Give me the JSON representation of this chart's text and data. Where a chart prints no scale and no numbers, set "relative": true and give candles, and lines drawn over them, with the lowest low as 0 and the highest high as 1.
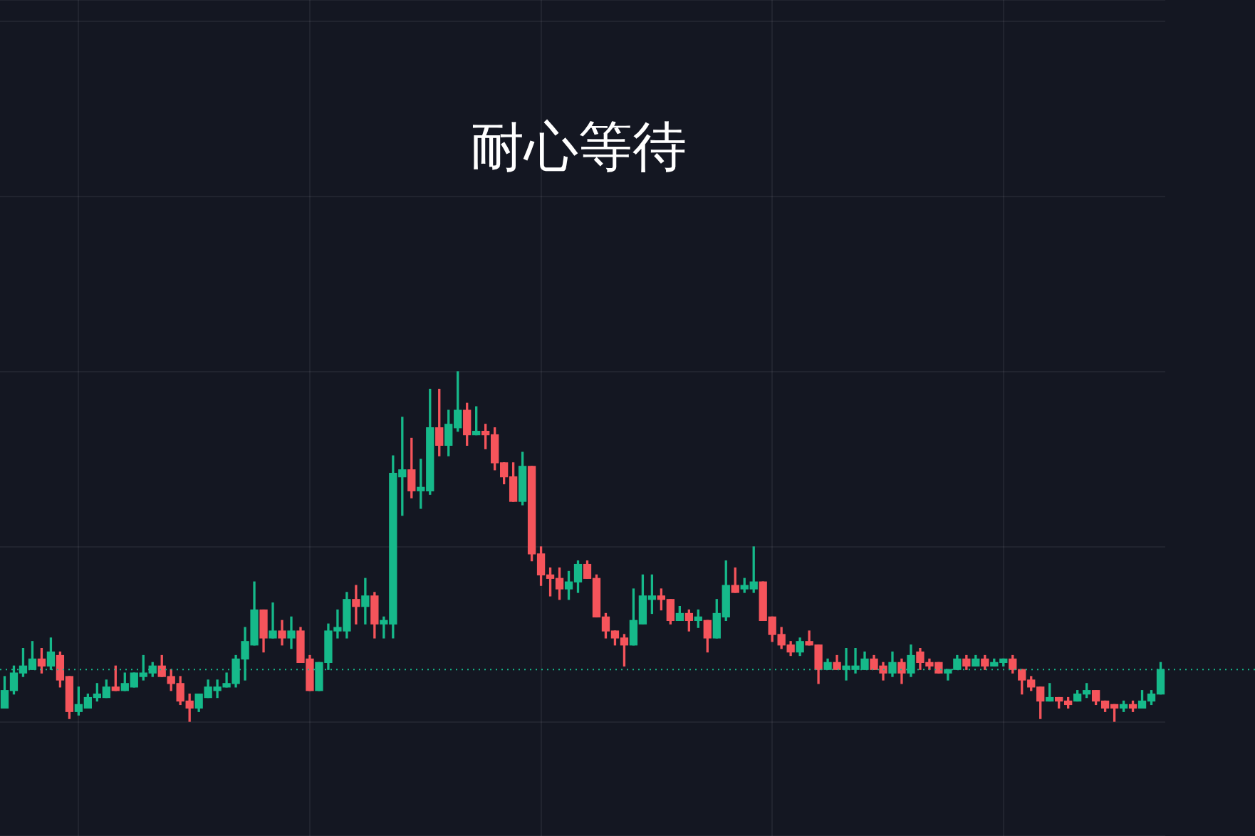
{
  "chart_data": {
    "type": "candlestick",
    "title": "耐心等待",
    "relative": true,
    "grid": true,
    "categories": [
      null,
      null,
      null,
      null,
      null,
      null,
      null,
      null,
      null,
      null,
      null,
      null,
      null,
      null,
      null,
      null,
      null,
      null,
      null,
      null,
      null,
      null,
      null,
      null,
      null,
      null,
      null,
      null,
      null,
      null,
      null,
      null,
      null,
      null,
      null,
      null,
      null,
      null,
      null,
      null,
      null,
      null,
      null,
      null,
      null,
      null,
      null,
      null,
      null,
      null,
      null,
      null,
      null,
      null,
      null,
      null,
      null,
      null,
      null,
      null,
      null,
      null,
      null,
      null,
      null,
      null,
      null,
      null,
      null,
      null,
      null,
      null,
      null,
      null,
      null,
      null,
      null,
      null,
      null,
      null,
      null,
      null,
      null,
      null,
      null,
      null,
      null,
      null,
      null,
      null,
      null,
      null,
      null,
      null,
      null,
      null,
      null,
      null,
      null,
      null,
      null,
      null,
      null,
      null,
      null,
      null,
      null,
      null,
      null,
      null,
      null,
      null,
      null,
      null,
      null,
      null,
      null,
      null,
      null,
      null,
      null,
      null,
      null,
      null,
      null,
      null
    ],
    "ohlc": [
      [
        0.04,
        0.13,
        0.04,
        0.09
      ],
      [
        0.09,
        0.16,
        0.08,
        0.14
      ],
      [
        0.14,
        0.21,
        0.13,
        0.16
      ],
      [
        0.15,
        0.23,
        0.15,
        0.18
      ],
      [
        0.18,
        0.21,
        0.14,
        0.16
      ],
      [
        0.16,
        0.24,
        0.15,
        0.2
      ],
      [
        0.19,
        0.2,
        0.1,
        0.12
      ],
      [
        0.13,
        0.13,
        0.01,
        0.03
      ],
      [
        0.03,
        0.1,
        0.02,
        0.05
      ],
      [
        0.04,
        0.08,
        0.04,
        0.07
      ],
      [
        0.07,
        0.11,
        0.06,
        0.08
      ],
      [
        0.07,
        0.12,
        0.07,
        0.1
      ],
      [
        0.1,
        0.16,
        0.09,
        0.09
      ],
      [
        0.09,
        0.14,
        0.09,
        0.11
      ],
      [
        0.1,
        0.14,
        0.1,
        0.14
      ],
      [
        0.13,
        0.19,
        0.12,
        0.14
      ],
      [
        0.14,
        0.17,
        0.13,
        0.16
      ],
      [
        0.16,
        0.19,
        0.13,
        0.13
      ],
      [
        0.13,
        0.15,
        0.09,
        0.11
      ],
      [
        0.11,
        0.13,
        0.05,
        0.06
      ],
      [
        0.06,
        0.08,
        0,
        0.04
      ],
      [
        0.04,
        0.08,
        0.03,
        0.08
      ],
      [
        0.07,
        0.12,
        0.07,
        0.1
      ],
      [
        0.09,
        0.12,
        0.07,
        0.1
      ],
      [
        0.1,
        0.14,
        0.1,
        0.11
      ],
      [
        0.11,
        0.19,
        0.1,
        0.18
      ],
      [
        0.18,
        0.27,
        0.12,
        0.23
      ],
      [
        0.22,
        0.4,
        0.22,
        0.32
      ],
      [
        0.32,
        0.32,
        0.2,
        0.24
      ],
      [
        0.24,
        0.34,
        0.24,
        0.26
      ],
      [
        0.26,
        0.29,
        0.22,
        0.24
      ],
      [
        0.24,
        0.3,
        0.21,
        0.26
      ],
      [
        0.26,
        0.27,
        0.17,
        0.17
      ],
      [
        0.18,
        0.19,
        0.09,
        0.09
      ],
      [
        0.09,
        0.17,
        0.09,
        0.17
      ],
      [
        0.17,
        0.28,
        0.15,
        0.26
      ],
      [
        0.26,
        0.32,
        0.24,
        0.27
      ],
      [
        0.26,
        0.37,
        0.24,
        0.35
      ],
      [
        0.35,
        0.39,
        0.28,
        0.33
      ],
      [
        0.33,
        0.41,
        0.28,
        0.36
      ],
      [
        0.36,
        0.37,
        0.24,
        0.28
      ],
      [
        0.28,
        0.3,
        0.24,
        0.29
      ],
      [
        0.28,
        0.76,
        0.24,
        0.71
      ],
      [
        0.7,
        0.87,
        0.59,
        0.72
      ],
      [
        0.72,
        0.81,
        0.64,
        0.66
      ],
      [
        0.66,
        0.75,
        0.61,
        0.67
      ],
      [
        0.66,
        0.95,
        0.65,
        0.84
      ],
      [
        0.84,
        0.95,
        0.76,
        0.79
      ],
      [
        0.79,
        0.89,
        0.76,
        0.85
      ],
      [
        0.84,
        1,
        0.83,
        0.89
      ],
      [
        0.89,
        0.91,
        0.79,
        0.82
      ],
      [
        0.82,
        0.9,
        0.82,
        0.83
      ],
      [
        0.83,
        0.85,
        0.78,
        0.82
      ],
      [
        0.82,
        0.84,
        0.72,
        0.74
      ],
      [
        0.74,
        0.74,
        0.68,
        0.7
      ],
      [
        0.7,
        0.74,
        0.63,
        0.63
      ],
      [
        0.63,
        0.77,
        0.62,
        0.73
      ],
      [
        0.73,
        0.73,
        0.46,
        0.48
      ],
      [
        0.48,
        0.5,
        0.39,
        0.42
      ],
      [
        0.42,
        0.44,
        0.36,
        0.41
      ],
      [
        0.41,
        0.44,
        0.35,
        0.38
      ],
      [
        0.38,
        0.43,
        0.35,
        0.4
      ],
      [
        0.4,
        0.46,
        0.37,
        0.45
      ],
      [
        0.45,
        0.46,
        0.41,
        0.41
      ],
      [
        0.41,
        0.42,
        0.3,
        0.3
      ],
      [
        0.3,
        0.31,
        0.24,
        0.26
      ],
      [
        0.26,
        0.26,
        0.22,
        0.24
      ],
      [
        0.24,
        0.25,
        0.16,
        0.22
      ],
      [
        0.22,
        0.38,
        0.22,
        0.29
      ],
      [
        0.28,
        0.42,
        0.28,
        0.36
      ],
      [
        0.35,
        0.42,
        0.31,
        0.36
      ],
      [
        0.36,
        0.38,
        0.32,
        0.35
      ],
      [
        0.35,
        0.35,
        0.28,
        0.29
      ],
      [
        0.29,
        0.33,
        0.29,
        0.31
      ],
      [
        0.31,
        0.32,
        0.26,
        0.29
      ],
      [
        0.29,
        0.32,
        0.27,
        0.3
      ],
      [
        0.29,
        0.29,
        0.2,
        0.24
      ],
      [
        0.24,
        0.35,
        0.24,
        0.31
      ],
      [
        0.3,
        0.46,
        0.29,
        0.39
      ],
      [
        0.39,
        0.44,
        0.37,
        0.37
      ],
      [
        0.38,
        0.41,
        0.37,
        0.39
      ],
      [
        0.38,
        0.5,
        0.37,
        0.4
      ],
      [
        0.4,
        0.4,
        0.29,
        0.29
      ],
      [
        0.3,
        0.3,
        0.23,
        0.25
      ],
      [
        0.25,
        0.27,
        0.21,
        0.22
      ],
      [
        0.22,
        0.23,
        0.19,
        0.2
      ],
      [
        0.2,
        0.24,
        0.19,
        0.23
      ],
      [
        0.23,
        0.26,
        0.22,
        0.22
      ],
      [
        0.22,
        0.22,
        0.11,
        0.15
      ],
      [
        0.15,
        0.18,
        0.15,
        0.17
      ],
      [
        0.17,
        0.19,
        0.15,
        0.15
      ],
      [
        0.15,
        0.21,
        0.12,
        0.16
      ],
      [
        0.15,
        0.21,
        0.14,
        0.16
      ],
      [
        0.15,
        0.2,
        0.15,
        0.18
      ],
      [
        0.18,
        0.19,
        0.15,
        0.15
      ],
      [
        0.16,
        0.17,
        0.12,
        0.14
      ],
      [
        0.14,
        0.2,
        0.13,
        0.17
      ],
      [
        0.17,
        0.18,
        0.11,
        0.14
      ],
      [
        0.14,
        0.22,
        0.13,
        0.19
      ],
      [
        0.2,
        0.21,
        0.15,
        0.17
      ],
      [
        0.17,
        0.18,
        0.15,
        0.16
      ],
      [
        0.17,
        0.17,
        0.14,
        0.14
      ],
      [
        0.14,
        0.15,
        0.12,
        0.15
      ],
      [
        0.15,
        0.19,
        0.15,
        0.18
      ],
      [
        0.18,
        0.19,
        0.15,
        0.16
      ],
      [
        0.16,
        0.19,
        0.16,
        0.18
      ],
      [
        0.18,
        0.19,
        0.15,
        0.16
      ],
      [
        0.16,
        0.18,
        0.16,
        0.17
      ],
      [
        0.17,
        0.18,
        0.16,
        0.18
      ],
      [
        0.18,
        0.19,
        0.14,
        0.15
      ],
      [
        0.15,
        0.15,
        0.08,
        0.12
      ],
      [
        0.12,
        0.13,
        0.09,
        0.1
      ],
      [
        0.1,
        0.1,
        0.01,
        0.06
      ],
      [
        0.06,
        0.11,
        0.06,
        0.07
      ],
      [
        0.07,
        0.07,
        0.04,
        0.06
      ],
      [
        0.06,
        0.07,
        0.04,
        0.05
      ],
      [
        0.06,
        0.09,
        0.06,
        0.08
      ],
      [
        0.08,
        0.11,
        0.07,
        0.09
      ],
      [
        0.09,
        0.09,
        0.05,
        0.06
      ],
      [
        0.06,
        0.06,
        0.03,
        0.04
      ],
      [
        0.05,
        0.05,
        0,
        0.04
      ],
      [
        0.04,
        0.06,
        0.03,
        0.05
      ],
      [
        0.05,
        0.06,
        0.03,
        0.04
      ],
      [
        0.04,
        0.09,
        0.04,
        0.06
      ],
      [
        0.06,
        0.09,
        0.05,
        0.08
      ],
      [
        0.08,
        0.17,
        0.08,
        0.15
      ]
    ],
    "colors": [
      "#16b98a",
      "#16b98a",
      "#16b98a",
      "#16b98a",
      "#f5545b",
      "#16b98a",
      "#f5545b",
      "#f5545b",
      "#16b98a",
      "#16b98a",
      "#16b98a",
      "#16b98a",
      "#f5545b",
      "#16b98a",
      "#16b98a",
      "#16b98a",
      "#16b98a",
      "#f5545b",
      "#f5545b",
      "#f5545b",
      "#f5545b",
      "#16b98a",
      "#16b98a",
      "#16b98a",
      "#16b98a",
      "#16b98a",
      "#16b98a",
      "#16b98a",
      "#f5545b",
      "#16b98a",
      "#f5545b",
      "#16b98a",
      "#f5545b",
      "#f5545b",
      "#16b98a",
      "#16b98a",
      "#16b98a",
      "#16b98a",
      "#f5545b",
      "#16b98a",
      "#f5545b",
      "#16b98a",
      "#16b98a",
      "#16b98a",
      "#f5545b",
      "#16b98a",
      "#16b98a",
      "#f5545b",
      "#16b98a",
      "#16b98a",
      "#f5545b",
      "#16b98a",
      "#f5545b",
      "#f5545b",
      "#f5545b",
      "#f5545b",
      "#16b98a",
      "#f5545b",
      "#f5545b",
      "#f5545b",
      "#f5545b",
      "#16b98a",
      "#16b98a",
      "#f5545b",
      "#f5545b",
      "#f5545b",
      "#f5545b",
      "#f5545b",
      "#16b98a",
      "#16b98a",
      "#16b98a",
      "#f5545b",
      "#f5545b",
      "#16b98a",
      "#f5545b",
      "#16b98a",
      "#f5545b",
      "#16b98a",
      "#16b98a",
      "#f5545b",
      "#16b98a",
      "#16b98a",
      "#f5545b",
      "#f5545b",
      "#f5545b",
      "#f5545b",
      "#16b98a",
      "#f5545b",
      "#f5545b",
      "#16b98a",
      "#f5545b",
      "#16b98a",
      "#16b98a",
      "#16b98a",
      "#f5545b",
      "#f5545b",
      "#16b98a",
      "#f5545b",
      "#16b98a",
      "#f5545b",
      "#f5545b",
      "#f5545b",
      "#16b98a",
      "#16b98a",
      "#f5545b",
      "#16b98a",
      "#f5545b",
      "#16b98a",
      "#16b98a",
      "#f5545b",
      "#f5545b",
      "#f5545b",
      "#f5545b",
      "#16b98a",
      "#f5545b",
      "#f5545b",
      "#16b98a",
      "#16b98a",
      "#f5545b",
      "#f5545b",
      "#f5545b",
      "#16b98a",
      "#f5545b",
      "#16b98a",
      "#16b98a",
      "#16b98a"
    ],
    "ref_lines": [
      {
        "axis": "y",
        "value": 0.15,
        "color": "#16b98a",
        "line_style": "dotted"
      }
    ]
  }
}
